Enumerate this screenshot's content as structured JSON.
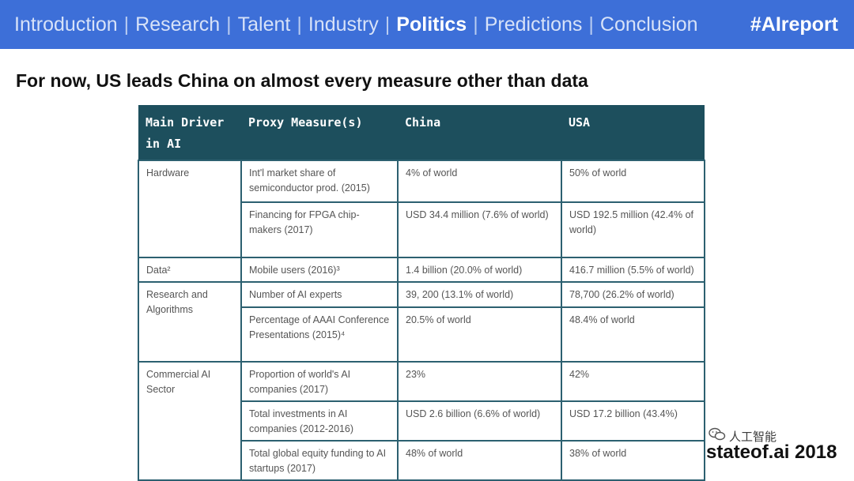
{
  "nav": {
    "items": [
      "Introduction",
      "Research",
      "Talent",
      "Industry",
      "Politics",
      "Predictions",
      "Conclusion"
    ],
    "active": "Politics",
    "hashtag": "#AIreport"
  },
  "slide": {
    "title": "For now, US leads China on almost every measure other than data"
  },
  "table": {
    "headers": [
      "Main Driver in AI",
      "Proxy Measure(s)",
      "China",
      "USA"
    ],
    "groups": [
      {
        "driver": "Hardware",
        "rows": [
          {
            "measure": "Int'l market share of semiconductor prod. (2015)",
            "china": "4% of world",
            "usa": "50% of world"
          },
          {
            "measure": "Financing for FPGA chip-makers (2017)",
            "china": "USD 34.4 million (7.6% of world)",
            "usa": "USD 192.5 million (42.4% of world)"
          }
        ]
      },
      {
        "driver": "Data²",
        "rows": [
          {
            "measure": "Mobile users (2016)³",
            "china": "1.4 billion (20.0% of world)",
            "usa": "416.7 million (5.5% of world)"
          }
        ]
      },
      {
        "driver": "Research and Algorithms",
        "rows": [
          {
            "measure": "Number of AI experts",
            "china": "39, 200 (13.1% of world)",
            "usa": "78,700 (26.2% of world)"
          },
          {
            "measure": "Percentage of AAAI Conference Presentations (2015)⁴",
            "china": "20.5% of world",
            "usa": "48.4% of world"
          }
        ]
      },
      {
        "driver": "Commercial AI Sector",
        "rows": [
          {
            "measure": "Proportion of world's AI companies (2017)",
            "china": "23%",
            "usa": "42%"
          },
          {
            "measure": "Total investments in AI companies (2012-2016)",
            "china": "USD 2.6 billion (6.6% of world)",
            "usa": "USD 17.2 billion (43.4%)"
          },
          {
            "measure": "Total global equity funding to AI startups (2017)",
            "china": "48% of world",
            "usa": "38% of world"
          }
        ]
      }
    ]
  },
  "footer": {
    "watermark": "人工智能",
    "brand": "stateof.ai 2018"
  }
}
